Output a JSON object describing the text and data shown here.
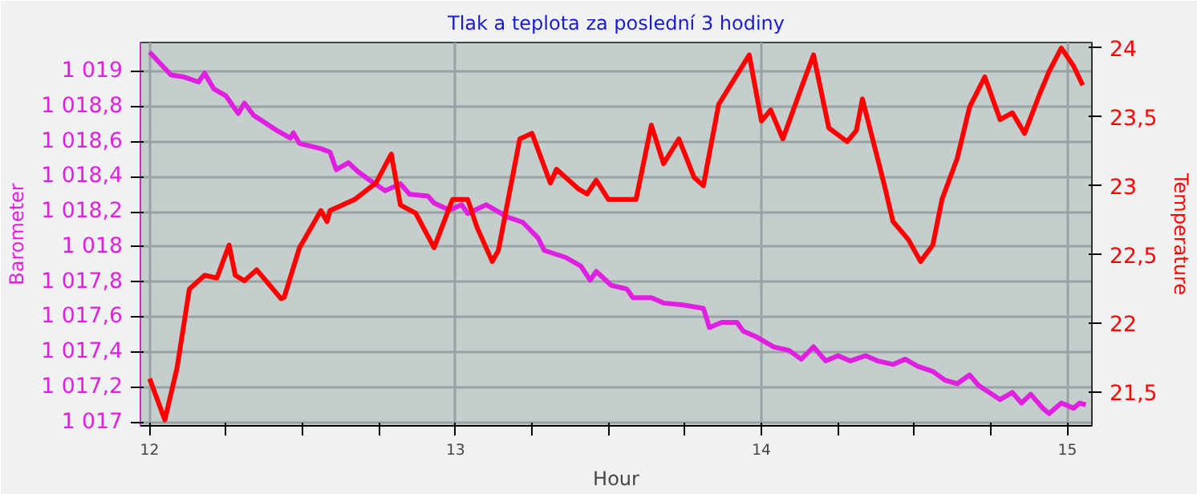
{
  "chart_data": {
    "type": "line",
    "title": "Tlak a teplota za poslední 3 hodiny",
    "xlabel": "Hour",
    "ylabel": "Barometer",
    "y2label": "Temperature",
    "xlim": [
      11.97,
      15.08
    ],
    "xticks": [
      12,
      {
        "value": 12.25,
        "label": null
      },
      {
        "value": 12.5,
        "label": null
      },
      {
        "value": 12.75,
        "label": null
      },
      13,
      {
        "value": 13.25,
        "label": null
      },
      {
        "value": 13.5,
        "label": null
      },
      {
        "value": 13.75,
        "label": null
      },
      14,
      {
        "value": 14.25,
        "label": null
      },
      {
        "value": 14.5,
        "label": null
      },
      {
        "value": 14.75,
        "label": null
      },
      15
    ],
    "ylim": [
      1016.98,
      1019.165
    ],
    "yticks": [
      {
        "value": 1017,
        "label": "1 017"
      },
      {
        "value": 1017.2,
        "label": "1 017,2"
      },
      {
        "value": 1017.4,
        "label": "1 017,4"
      },
      {
        "value": 1017.6,
        "label": "1 017,6"
      },
      {
        "value": 1017.8,
        "label": "1 017,8"
      },
      {
        "value": 1018,
        "label": "1 018"
      },
      {
        "value": 1018.2,
        "label": "1 018,2"
      },
      {
        "value": 1018.4,
        "label": "1 018,4"
      },
      {
        "value": 1018.6,
        "label": "1 018,6"
      },
      {
        "value": 1018.8,
        "label": "1 018,8"
      },
      {
        "value": 1019,
        "label": "1 019"
      }
    ],
    "y2lim": [
      21.257,
      24.04
    ],
    "y2ticks": [
      {
        "value": 21.5,
        "label": "21,5"
      },
      22,
      {
        "value": 22.5,
        "label": "22,5"
      },
      23,
      {
        "value": 23.5,
        "label": "23,5"
      },
      24
    ],
    "grid": true,
    "marker": "none",
    "line_style": "solid",
    "series": [
      {
        "color": "#e020e0",
        "x": [
          12,
          12.07,
          12.11,
          12.16,
          12.18,
          12.21,
          12.25,
          12.29,
          12.31,
          12.34,
          12.41,
          12.46,
          12.47,
          12.49,
          12.56,
          12.59,
          12.61,
          12.65,
          12.68,
          12.72,
          12.77,
          12.82,
          12.85,
          12.91,
          12.93,
          12.98,
          13.02,
          13.04,
          13.1,
          13.17,
          13.22,
          13.27,
          13.29,
          13.36,
          13.41,
          13.44,
          13.46,
          13.51,
          13.56,
          13.58,
          13.64,
          13.68,
          13.74,
          13.81,
          13.83,
          13.87,
          13.92,
          13.94,
          13.98,
          14.04,
          14.09,
          14.13,
          14.17,
          14.21,
          14.25,
          14.29,
          14.34,
          14.38,
          14.43,
          14.47,
          14.51,
          14.56,
          14.6,
          14.64,
          14.68,
          14.71,
          14.78,
          14.82,
          14.85,
          14.88,
          14.92,
          14.94,
          14.98,
          15.02,
          15.04,
          15.06
        ],
        "values": [
          1019.11,
          1018.98,
          1018.97,
          1018.94,
          1018.99,
          1018.9,
          1018.86,
          1018.76,
          1018.82,
          1018.75,
          1018.67,
          1018.62,
          1018.65,
          1018.59,
          1018.56,
          1018.54,
          1018.44,
          1018.48,
          1018.43,
          1018.38,
          1018.32,
          1018.36,
          1018.3,
          1018.29,
          1018.25,
          1018.21,
          1018.24,
          1018.19,
          1018.24,
          1018.17,
          1018.14,
          1018.05,
          1017.98,
          1017.94,
          1017.89,
          1017.81,
          1017.86,
          1017.78,
          1017.76,
          1017.71,
          1017.71,
          1017.68,
          1017.67,
          1017.65,
          1017.54,
          1017.57,
          1017.57,
          1017.52,
          1017.49,
          1017.43,
          1017.41,
          1017.36,
          1017.43,
          1017.35,
          1017.38,
          1017.35,
          1017.38,
          1017.35,
          1017.33,
          1017.36,
          1017.32,
          1017.29,
          1017.24,
          1017.22,
          1017.27,
          1017.21,
          1017.13,
          1017.17,
          1017.11,
          1017.16,
          1017.08,
          1017.05,
          1017.11,
          1017.08,
          1017.11,
          1017.1
        ]
      },
      {
        "color": "#ff0000",
        "axis": "y2",
        "x": [
          12,
          12.05,
          12.09,
          12.13,
          12.18,
          12.22,
          12.26,
          12.28,
          12.31,
          12.35,
          12.43,
          12.44,
          12.49,
          12.56,
          12.58,
          12.59,
          12.67,
          12.74,
          12.79,
          12.82,
          12.87,
          12.93,
          12.99,
          13.04,
          13.07,
          13.12,
          13.14,
          13.21,
          13.25,
          13.31,
          13.33,
          13.4,
          13.43,
          13.46,
          13.5,
          13.54,
          13.59,
          13.64,
          13.68,
          13.73,
          13.78,
          13.81,
          13.86,
          13.91,
          13.96,
          14,
          14.03,
          14.07,
          14.13,
          14.17,
          14.22,
          14.28,
          14.31,
          14.33,
          14.4,
          14.43,
          14.48,
          14.52,
          14.56,
          14.59,
          14.64,
          14.68,
          14.73,
          14.78,
          14.82,
          14.86,
          14.91,
          14.94,
          14.98,
          15.02,
          15.05
        ],
        "values": [
          21.6,
          21.3,
          21.68,
          22.25,
          22.35,
          22.33,
          22.57,
          22.35,
          22.31,
          22.39,
          22.18,
          22.19,
          22.55,
          22.82,
          22.74,
          22.82,
          22.9,
          23.02,
          23.23,
          22.86,
          22.8,
          22.55,
          22.9,
          22.9,
          22.7,
          22.45,
          22.53,
          23.34,
          23.38,
          23.02,
          23.12,
          22.98,
          22.94,
          23.04,
          22.9,
          22.9,
          22.9,
          23.44,
          23.16,
          23.34,
          23.06,
          23.0,
          23.59,
          23.77,
          23.95,
          23.47,
          23.55,
          23.34,
          23.71,
          23.95,
          23.42,
          23.32,
          23.4,
          23.63,
          23.02,
          22.74,
          22.61,
          22.45,
          22.57,
          22.9,
          23.2,
          23.57,
          23.79,
          23.48,
          23.53,
          23.38,
          23.67,
          23.83,
          24.0,
          23.87,
          23.73
        ]
      }
    ]
  }
}
